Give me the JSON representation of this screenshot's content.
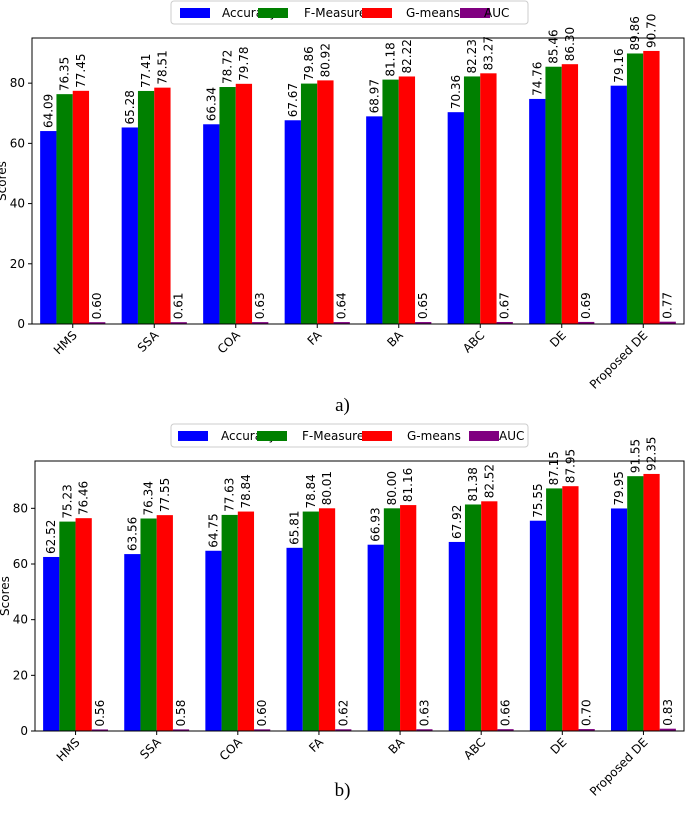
{
  "chart_data": [
    {
      "type": "bar",
      "panel_label": "a)",
      "categories": [
        "HMS",
        "SSA",
        "COA",
        "FA",
        "BA",
        "ABC",
        "DE",
        "Proposed DE"
      ],
      "ylabel": "Scores",
      "ylim": [
        0,
        95
      ],
      "yticks": [
        0,
        20,
        40,
        60,
        80
      ],
      "legend_placement": "top-center",
      "grid": false,
      "series": [
        {
          "name": "Accuracy",
          "color": "#0000ff",
          "values": [
            64.09,
            65.28,
            66.34,
            67.67,
            68.97,
            70.36,
            74.76,
            79.16
          ],
          "labels": [
            "64.09",
            "65.28",
            "66.34",
            "67.67",
            "68.97",
            "70.36",
            "74.76",
            "79.16"
          ]
        },
        {
          "name": "F-Measure",
          "color": "#008000",
          "values": [
            76.35,
            77.41,
            78.72,
            79.86,
            81.18,
            82.23,
            85.46,
            89.86
          ],
          "labels": [
            "76.35",
            "77.41",
            "78.72",
            "79.86",
            "81.18",
            "82.23",
            "85.46",
            "89.86"
          ]
        },
        {
          "name": "G-means",
          "color": "#ff0000",
          "values": [
            77.45,
            78.51,
            79.78,
            80.92,
            82.22,
            83.27,
            86.3,
            90.7
          ],
          "labels": [
            "77.45",
            "78.51",
            "79.78",
            "80.92",
            "82.22",
            "83.27",
            "86.30",
            "90.70"
          ]
        },
        {
          "name": "AUC",
          "color": "#800080",
          "values": [
            0.6,
            0.61,
            0.63,
            0.64,
            0.65,
            0.67,
            0.69,
            0.77
          ],
          "labels": [
            "0.60",
            "0.61",
            "0.63",
            "0.64",
            "0.65",
            "0.67",
            "0.69",
            "0.77"
          ]
        }
      ]
    },
    {
      "type": "bar",
      "panel_label": "b)",
      "categories": [
        "HMS",
        "SSA",
        "COA",
        "FA",
        "BA",
        "ABC",
        "DE",
        "Proposed DE"
      ],
      "ylabel": "Scores",
      "ylim": [
        0,
        97
      ],
      "yticks": [
        0,
        20,
        40,
        60,
        80
      ],
      "legend_placement": "top-center",
      "grid": false,
      "series": [
        {
          "name": "Accuracy",
          "color": "#0000ff",
          "values": [
            62.52,
            63.56,
            64.75,
            65.81,
            66.93,
            67.92,
            75.55,
            79.95
          ],
          "labels": [
            "62.52",
            "63.56",
            "64.75",
            "65.81",
            "66.93",
            "67.92",
            "75.55",
            "79.95"
          ]
        },
        {
          "name": "F-Measure",
          "color": "#008000",
          "values": [
            75.23,
            76.34,
            77.63,
            78.84,
            80.0,
            81.38,
            87.15,
            91.55
          ],
          "labels": [
            "75.23",
            "76.34",
            "77.63",
            "78.84",
            "80.00",
            "81.38",
            "87.15",
            "91.55"
          ]
        },
        {
          "name": "G-means",
          "color": "#ff0000",
          "values": [
            76.46,
            77.55,
            78.84,
            80.01,
            81.16,
            82.52,
            87.95,
            92.35
          ],
          "labels": [
            "76.46",
            "77.55",
            "78.84",
            "80.01",
            "81.16",
            "82.52",
            "87.95",
            "92.35"
          ]
        },
        {
          "name": "AUC",
          "color": "#800080",
          "values": [
            0.56,
            0.58,
            0.6,
            0.62,
            0.63,
            0.66,
            0.7,
            0.83
          ],
          "labels": [
            "0.56",
            "0.58",
            "0.60",
            "0.62",
            "0.63",
            "0.66",
            "0.70",
            "0.83"
          ]
        }
      ]
    }
  ]
}
